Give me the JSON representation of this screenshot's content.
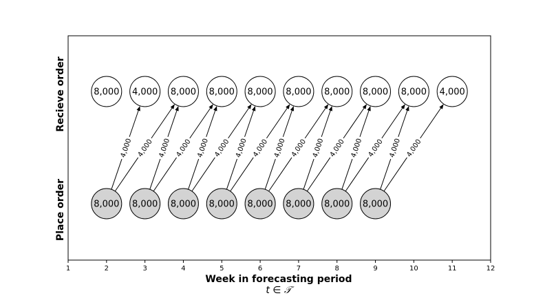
{
  "chart_data": {
    "type": "diagram",
    "xlabel": "Week in forecasting period",
    "xlabel_math": "t ∈ 𝒯",
    "xlim": [
      1,
      12
    ],
    "x_ticks": [
      1,
      2,
      3,
      4,
      5,
      6,
      7,
      8,
      9,
      10,
      11,
      12
    ],
    "rows": [
      {
        "label": "Recieve order"
      },
      {
        "label": "Place order"
      }
    ],
    "receive_nodes": [
      {
        "week": 2,
        "value": "8,000"
      },
      {
        "week": 3,
        "value": "4,000"
      },
      {
        "week": 4,
        "value": "8,000"
      },
      {
        "week": 5,
        "value": "8,000"
      },
      {
        "week": 6,
        "value": "8,000"
      },
      {
        "week": 7,
        "value": "8,000"
      },
      {
        "week": 8,
        "value": "8,000"
      },
      {
        "week": 9,
        "value": "8,000"
      },
      {
        "week": 10,
        "value": "8,000"
      },
      {
        "week": 11,
        "value": "4,000"
      }
    ],
    "place_nodes": [
      {
        "week": 2,
        "value": "8,000"
      },
      {
        "week": 3,
        "value": "8,000"
      },
      {
        "week": 4,
        "value": "8,000"
      },
      {
        "week": 5,
        "value": "8,000"
      },
      {
        "week": 6,
        "value": "8,000"
      },
      {
        "week": 7,
        "value": "8,000"
      },
      {
        "week": 8,
        "value": "8,000"
      },
      {
        "week": 9,
        "value": "8,000"
      }
    ],
    "arrows": [
      {
        "from_week": 2,
        "to_week": 3,
        "label": "4,000"
      },
      {
        "from_week": 2,
        "to_week": 4,
        "label": "4,000"
      },
      {
        "from_week": 3,
        "to_week": 4,
        "label": "4,000"
      },
      {
        "from_week": 3,
        "to_week": 5,
        "label": "4,000"
      },
      {
        "from_week": 4,
        "to_week": 5,
        "label": "4,000"
      },
      {
        "from_week": 4,
        "to_week": 6,
        "label": "4,000"
      },
      {
        "from_week": 5,
        "to_week": 6,
        "label": "4,000"
      },
      {
        "from_week": 5,
        "to_week": 7,
        "label": "4,000"
      },
      {
        "from_week": 6,
        "to_week": 7,
        "label": "4,000"
      },
      {
        "from_week": 6,
        "to_week": 8,
        "label": "4,000"
      },
      {
        "from_week": 7,
        "to_week": 8,
        "label": "4,000"
      },
      {
        "from_week": 7,
        "to_week": 9,
        "label": "4,000"
      },
      {
        "from_week": 8,
        "to_week": 9,
        "label": "4,000"
      },
      {
        "from_week": 8,
        "to_week": 10,
        "label": "4,000"
      },
      {
        "from_week": 9,
        "to_week": 10,
        "label": "4,000"
      },
      {
        "from_week": 9,
        "to_week": 11,
        "label": "4,000"
      }
    ],
    "colors": {
      "place_fill": "#d3d3d3",
      "receive_fill": "#ffffff",
      "stroke": "#000000"
    }
  }
}
